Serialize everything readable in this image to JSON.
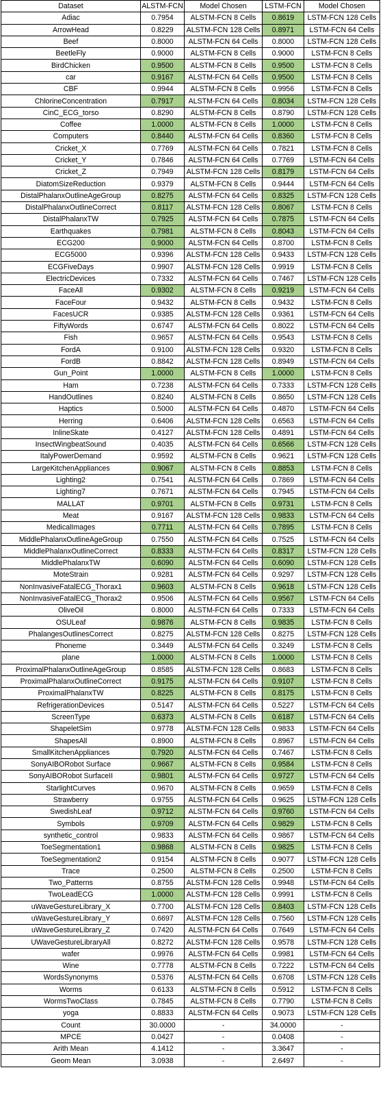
{
  "highlight_color": "#a9d08e",
  "columns": [
    "Dataset",
    "ALSTM-FCN",
    "Model Chosen",
    "LSTM-FCN",
    "Model Chosen"
  ],
  "rows": [
    [
      "Adiac",
      "0.7954",
      "ALSTM-FCN 8 Cells",
      "0.8619",
      "LSTM-FCN 128 Cells",
      0,
      1
    ],
    [
      "ArrowHead",
      "0.8229",
      "ALSTM-FCN 128 Cells",
      "0.8971",
      "LSTM-FCN 64 Cells",
      0,
      1
    ],
    [
      "Beef",
      "0.8000",
      "ALSTM-FCN 64 Cells",
      "0.8000",
      "LSTM-FCN 128 Cells",
      0,
      0
    ],
    [
      "BeetleFly",
      "0.9000",
      "ALSTM-FCN 8 Cells",
      "0.9000",
      "LSTM-FCN 8 Cells",
      0,
      0
    ],
    [
      "BirdChicken",
      "0.9500",
      "ALSTM-FCN 8 Cells",
      "0.9500",
      "LSTM-FCN 8 Cells",
      1,
      1
    ],
    [
      "car",
      "0.9167",
      "ALSTM-FCN 64 Cells",
      "0.9500",
      "LSTM-FCN 8 Cells",
      1,
      1
    ],
    [
      "CBF",
      "0.9944",
      "ALSTM-FCN 8 Cells",
      "0.9956",
      "LSTM-FCN 8 Cells",
      0,
      0
    ],
    [
      "ChlorineConcentration",
      "0.7917",
      "ALSTM-FCN 64 Cells",
      "0.8034",
      "LSTM-FCN 128 Cells",
      1,
      1
    ],
    [
      "CinC_ECG_torso",
      "0.8290",
      "ALSTM-FCN 8 Cells",
      "0.8790",
      "LSTM-FCN 128 Cells",
      0,
      0
    ],
    [
      "Coffee",
      "1.0000",
      "ALSTM-FCN 8 Cells",
      "1.0000",
      "LSTM-FCN 8 Cells",
      1,
      1
    ],
    [
      "Computers",
      "0.8440",
      "ALSTM-FCN 64 Cells",
      "0.8360",
      "LSTM-FCN 8 Cells",
      1,
      1
    ],
    [
      "Cricket_X",
      "0.7769",
      "ALSTM-FCN 64 Cells",
      "0.7821",
      "LSTM-FCN 8 Cells",
      0,
      0
    ],
    [
      "Cricket_Y",
      "0.7846",
      "ALSTM-FCN 64 Cells",
      "0.7769",
      "LSTM-FCN 64 Cells",
      0,
      0
    ],
    [
      "Cricket_Z",
      "0.7949",
      "ALSTM-FCN 128 Cells",
      "0.8179",
      "LSTM-FCN 64 Cells",
      0,
      1
    ],
    [
      "DiatomSizeReduction",
      "0.9379",
      "ALSTM-FCN 8 Cells",
      "0.9444",
      "LSTM-FCN 64 Cells",
      0,
      0
    ],
    [
      "DistalPhalanxOutlineAgeGroup",
      "0.8275",
      "ALSTM-FCN 64 Cells",
      "0.8325",
      "LSTM-FCN 128 Cells",
      1,
      1
    ],
    [
      "DistalPhalanxOutlineCorrect",
      "0.8117",
      "ALSTM-FCN 128 Cells",
      "0.8067",
      "LSTM-FCN 8 Cells",
      1,
      1
    ],
    [
      "DistalPhalanxTW",
      "0.7925",
      "ALSTM-FCN 64 Cells",
      "0.7875",
      "LSTM-FCN 64 Cells",
      1,
      1
    ],
    [
      "Earthquakes",
      "0.7981",
      "ALSTM-FCN 8 Cells",
      "0.8043",
      "LSTM-FCN 64 Cells",
      1,
      1
    ],
    [
      "ECG200",
      "0.9000",
      "ALSTM-FCN 64 Cells",
      "0.8700",
      "LSTM-FCN 8 Cells",
      1,
      0
    ],
    [
      "ECG5000",
      "0.9396",
      "ALSTM-FCN 128 Cells",
      "0.9433",
      "LSTM-FCN 128 Cells",
      0,
      0
    ],
    [
      "ECGFiveDays",
      "0.9907",
      "ALSTM-FCN 128 Cells",
      "0.9919",
      "LSTM-FCN 8 Cells",
      0,
      0
    ],
    [
      "ElectricDevices",
      "0.7332",
      "ALSTM-FCN 64 Cells",
      "0.7467",
      "LSTM-FCN 128 Cells",
      0,
      0
    ],
    [
      "FaceAll",
      "0.9302",
      "ALSTM-FCN 8 Cells",
      "0.9219",
      "LSTM-FCN 64 Cells",
      1,
      1
    ],
    [
      "FaceFour",
      "0.9432",
      "ALSTM-FCN 8 Cells",
      "0.9432",
      "LSTM-FCN 8 Cells",
      0,
      0
    ],
    [
      "FacesUCR",
      "0.9385",
      "ALSTM-FCN 128 Cells",
      "0.9361",
      "LSTM-FCN 64 Cells",
      0,
      0
    ],
    [
      "FiftyWords",
      "0.6747",
      "ALSTM-FCN 64 Cells",
      "0.8022",
      "LSTM-FCN 64 Cells",
      0,
      0
    ],
    [
      "Fish",
      "0.9657",
      "ALSTM-FCN 64 Cells",
      "0.9543",
      "LSTM-FCN 8 Cells",
      0,
      0
    ],
    [
      "FordA",
      "0.9100",
      "ALSTM-FCN 128 Cells",
      "0.9320",
      "LSTM-FCN 8 Cells",
      0,
      0
    ],
    [
      "FordB",
      "0.8842",
      "ALSTM-FCN 128 Cells",
      "0.8949",
      "LSTM-FCN 64 Cells",
      0,
      0
    ],
    [
      "Gun_Point",
      "1.0000",
      "ALSTM-FCN 8 Cells",
      "1.0000",
      "LSTM-FCN 8 Cells",
      1,
      1
    ],
    [
      "Ham",
      "0.7238",
      "ALSTM-FCN 64 Cells",
      "0.7333",
      "LSTM-FCN 128 Cells",
      0,
      0
    ],
    [
      "HandOutlines",
      "0.8240",
      "ALSTM-FCN 8 Cells",
      "0.8650",
      "LSTM-FCN 128 Cells",
      0,
      0
    ],
    [
      "Haptics",
      "0.5000",
      "ALSTM-FCN 64 Cells",
      "0.4870",
      "LSTM-FCN 64 Cells",
      0,
      0
    ],
    [
      "Herring",
      "0.6406",
      "ALSTM-FCN 128 Cells",
      "0.6563",
      "LSTM-FCN 64 Cells",
      0,
      0
    ],
    [
      "InlineSkate",
      "0.4127",
      "ALSTM-FCN 128 Cells",
      "0.4891",
      "LSTM-FCN 64 Cells",
      0,
      0
    ],
    [
      "InsectWingbeatSound",
      "0.4035",
      "ALSTM-FCN 64 Cells",
      "0.6566",
      "LSTM-FCN 128 Cells",
      0,
      1
    ],
    [
      "ItalyPowerDemand",
      "0.9592",
      "ALSTM-FCN 8 Cells",
      "0.9621",
      "LSTM-FCN 128 Cells",
      0,
      0
    ],
    [
      "LargeKitchenAppliances",
      "0.9067",
      "ALSTM-FCN 8 Cells",
      "0.8853",
      "LSTM-FCN 8 Cells",
      1,
      1
    ],
    [
      "Lighting2",
      "0.7541",
      "ALSTM-FCN 64 Cells",
      "0.7869",
      "LSTM-FCN 64 Cells",
      0,
      0
    ],
    [
      "Lighting7",
      "0.7671",
      "ALSTM-FCN 64 Cells",
      "0.7945",
      "LSTM-FCN 64 Cells",
      0,
      0
    ],
    [
      "MALLAT",
      "0.9701",
      "ALSTM-FCN 8 Cells",
      "0.9731",
      "LSTM-FCN 8 Cells",
      1,
      1
    ],
    [
      "Meat",
      "0.9167",
      "ALSTM-FCN 128 Cells",
      "0.9833",
      "LSTM-FCN 64 Cells",
      0,
      1
    ],
    [
      "MedicalImages",
      "0.7711",
      "ALSTM-FCN 64 Cells",
      "0.7895",
      "LSTM-FCN 8 Cells",
      1,
      1
    ],
    [
      "MiddlePhalanxOutlineAgeGroup",
      "0.7550",
      "ALSTM-FCN 64 Cells",
      "0.7525",
      "LSTM-FCN 64 Cells",
      0,
      0
    ],
    [
      "MiddlePhalanxOutlineCorrect",
      "0.8333",
      "ALSTM-FCN 64 Cells",
      "0.8317",
      "LSTM-FCN 128 Cells",
      1,
      1
    ],
    [
      "MiddlePhalanxTW",
      "0.6090",
      "ALSTM-FCN 64 Cells",
      "0.6090",
      "LSTM-FCN 128 Cells",
      1,
      1
    ],
    [
      "MoteStrain",
      "0.9281",
      "ALSTM-FCN 64 Cells",
      "0.9297",
      "LSTM-FCN 128 Cells",
      0,
      0
    ],
    [
      "NonInvasiveFatalECG_Thorax1",
      "0.9603",
      "ALSTM-FCN 8 Cells",
      "0.9618",
      "LSTM-FCN 128 Cells",
      1,
      1
    ],
    [
      "NonInvasiveFatalECG_Thorax2",
      "0.9506",
      "ALSTM-FCN 64 Cells",
      "0.9567",
      "LSTM-FCN 64 Cells",
      0,
      1
    ],
    [
      "OliveOil",
      "0.8000",
      "ALSTM-FCN 64 Cells",
      "0.7333",
      "LSTM-FCN 64 Cells",
      0,
      0
    ],
    [
      "OSULeaf",
      "0.9876",
      "ALSTM-FCN 8 Cells",
      "0.9835",
      "LSTM-FCN 8 Cells",
      1,
      1
    ],
    [
      "PhalangesOutlinesCorrect",
      "0.8275",
      "ALSTM-FCN 128 Cells",
      "0.8275",
      "LSTM-FCN 128 Cells",
      0,
      0
    ],
    [
      "Phoneme",
      "0.3449",
      "ALSTM-FCN 64 Cells",
      "0.3249",
      "LSTM-FCN 8 Cells",
      0,
      0
    ],
    [
      "plane",
      "1.0000",
      "ALSTM-FCN 8 Cells",
      "1.0000",
      "LSTM-FCN 8 Cells",
      1,
      1
    ],
    [
      "ProximalPhalanxOutlineAgeGroup",
      "0.8585",
      "ALSTM-FCN 128 Cells",
      "0.8683",
      "LSTM-FCN 8 Cells",
      0,
      0
    ],
    [
      "ProximalPhalanxOutlineCorrect",
      "0.9175",
      "ALSTM-FCN 64 Cells",
      "0.9107",
      "LSTM-FCN 8 Cells",
      1,
      1
    ],
    [
      "ProximalPhalanxTW",
      "0.8225",
      "ALSTM-FCN 8 Cells",
      "0.8175",
      "LSTM-FCN 8 Cells",
      1,
      1
    ],
    [
      "RefrigerationDevices",
      "0.5147",
      "ALSTM-FCN 64 Cells",
      "0.5227",
      "LSTM-FCN 64 Cells",
      0,
      0
    ],
    [
      "ScreenType",
      "0.6373",
      "ALSTM-FCN 8 Cells",
      "0.6187",
      "LSTM-FCN 64 Cells",
      1,
      1
    ],
    [
      "ShapeletSim",
      "0.9778",
      "ALSTM-FCN 128 Cells",
      "0.9833",
      "LSTM-FCN 64 Cells",
      0,
      0
    ],
    [
      "ShapesAll",
      "0.8900",
      "ALSTM-FCN 8 Cells",
      "0.8967",
      "LSTM-FCN 64 Cells",
      0,
      0
    ],
    [
      "SmallKitchenAppliances",
      "0.7920",
      "ALSTM-FCN 64 Cells",
      "0.7467",
      "LSTM-FCN 8 Cells",
      1,
      0
    ],
    [
      "SonyAIBORobot Surface",
      "0.9667",
      "ALSTM-FCN 8 Cells",
      "0.9584",
      "LSTM-FCN 8 Cells",
      1,
      1
    ],
    [
      "SonyAIBORobot SurfaceII",
      "0.9801",
      "ALSTM-FCN 64 Cells",
      "0.9727",
      "LSTM-FCN 64 Cells",
      1,
      1
    ],
    [
      "StarlightCurves",
      "0.9670",
      "ALSTM-FCN 8 Cells",
      "0.9659",
      "LSTM-FCN 8 Cells",
      0,
      0
    ],
    [
      "Strawberry",
      "0.9755",
      "ALSTM-FCN 64 Cells",
      "0.9625",
      "LSTM-FCN 128 Cells",
      0,
      0
    ],
    [
      "SwedishLeaf",
      "0.9712",
      "ALSTM-FCN 64 Cells",
      "0.9760",
      "LSTM-FCN 64 Cells",
      1,
      1
    ],
    [
      "Symbols",
      "0.9709",
      "ALSTM-FCN 64 Cells",
      "0.9829",
      "LSTM-FCN 8 Cells",
      1,
      1
    ],
    [
      "synthetic_control",
      "0.9833",
      "ALSTM-FCN 64 Cells",
      "0.9867",
      "LSTM-FCN 64 Cells",
      0,
      0
    ],
    [
      "ToeSegmentation1",
      "0.9868",
      "ALSTM-FCN 8 Cells",
      "0.9825",
      "LSTM-FCN 8 Cells",
      1,
      1
    ],
    [
      "ToeSegmentation2",
      "0.9154",
      "ALSTM-FCN 8 Cells",
      "0.9077",
      "LSTM-FCN 128 Cells",
      0,
      0
    ],
    [
      "Trace",
      "0.2500",
      "ALSTM-FCN 8 Cells",
      "0.2500",
      "LSTM-FCN 8 Cells",
      0,
      0
    ],
    [
      "Two_Patterns",
      "0.8755",
      "ALSTM-FCN 128 Cells",
      "0.9948",
      "LSTM-FCN 64 Cells",
      0,
      0
    ],
    [
      "TwoLeadECG",
      "1.0000",
      "ALSTM-FCN 128 Cells",
      "0.9991",
      "LSTM-FCN 8 Cells",
      1,
      0
    ],
    [
      "uWaveGestureLibrary_X",
      "0.7700",
      "ALSTM-FCN 128 Cells",
      "0.8403",
      "LSTM-FCN 128 Cells",
      0,
      1
    ],
    [
      "uWaveGestureLibrary_Y",
      "0.6697",
      "ALSTM-FCN 128 Cells",
      "0.7560",
      "LSTM-FCN 128 Cells",
      0,
      0
    ],
    [
      "uWaveGestureLibrary_Z",
      "0.7420",
      "ALSTM-FCN 64 Cells",
      "0.7649",
      "LSTM-FCN 64 Cells",
      0,
      0
    ],
    [
      "UWaveGestureLibraryAll",
      "0.8272",
      "ALSTM-FCN 128 Cells",
      "0.9578",
      "LSTM-FCN 128 Cells",
      0,
      0
    ],
    [
      "wafer",
      "0.9976",
      "ALSTM-FCN 64 Cells",
      "0.9981",
      "LSTM-FCN 64 Cells",
      0,
      0
    ],
    [
      "Wine",
      "0.7778",
      "ALSTM-FCN 8 Cells",
      "0.7222",
      "LSTM-FCN 64 Cells",
      0,
      0
    ],
    [
      "WordsSynonyms",
      "0.5376",
      "ALSTM-FCN 64 Cells",
      "0.6708",
      "LSTM-FCN 128 Cells",
      0,
      0
    ],
    [
      "Worms",
      "0.6133",
      "ALSTM-FCN 8 Cells",
      "0.5912",
      "LSTM-FCN 8 Cells",
      0,
      0
    ],
    [
      "WormsTwoClass",
      "0.7845",
      "ALSTM-FCN 8 Cells",
      "0.7790",
      "LSTM-FCN 8 Cells",
      0,
      0
    ],
    [
      "yoga",
      "0.8833",
      "ALSTM-FCN 64 Cells",
      "0.9073",
      "LSTM-FCN 128 Cells",
      0,
      0
    ],
    [
      "Count",
      "30.0000",
      "-",
      "34.0000",
      "-",
      0,
      0
    ],
    [
      "MPCE",
      "0.0427",
      "-",
      "0.0408",
      "-",
      0,
      0
    ],
    [
      "Arith Mean",
      "4.1412",
      "-",
      "3.3647",
      "-",
      0,
      0
    ],
    [
      "Geom Mean",
      "3.0938",
      "-",
      "2.6497",
      "-",
      0,
      0
    ]
  ]
}
